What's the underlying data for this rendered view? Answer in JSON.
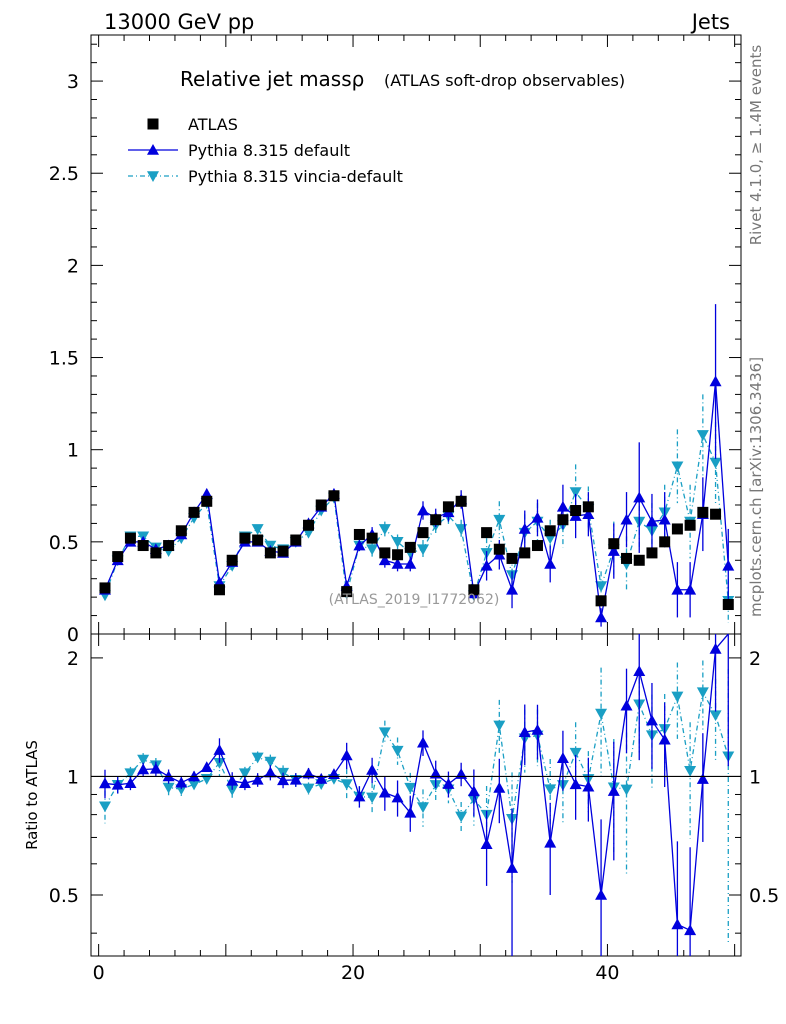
{
  "header": {
    "left": "13000 GeV pp",
    "right": "Jets"
  },
  "side_labels": {
    "top": "Rivet 4.1.0, ≥ 1.4M events",
    "bottom": "mcplots.cern.ch [arXiv:1306.3436]"
  },
  "watermark": "(ATLAS_2019_I1772062)",
  "chart_data": {
    "type": "scatter",
    "title": "Relative jet massρ",
    "subtitle": "(ATLAS soft-drop observables)",
    "xlabel": "",
    "ylabel": "",
    "ratio_ylabel": "Ratio to ATLAS",
    "xlim": [
      -0.6,
      50.5
    ],
    "ylim": [
      0,
      3.25
    ],
    "ratio_ylim": [
      0.35,
      2.3
    ],
    "x_ticks": [
      0,
      20,
      40
    ],
    "x_tick_labels": [
      "0",
      "20",
      "40"
    ],
    "y_ticks": [
      0,
      0.5,
      1,
      1.5,
      2,
      2.5,
      3
    ],
    "y_tick_labels": [
      "0",
      "0.5",
      "1",
      "1.5",
      "2",
      "2.5",
      "3"
    ],
    "ratio_ticks": [
      0.5,
      1,
      2
    ],
    "ratio_tick_labels": [
      "0.5",
      "1",
      "2"
    ],
    "legend": [
      "ATLAS",
      "Pythia 8.315 default",
      "Pythia 8.315 vincia-default"
    ],
    "colors": {
      "data": "#000000",
      "default": "#0000dd",
      "vincia": "#1a9fc4"
    },
    "x": [
      0.5,
      1.5,
      2.5,
      3.5,
      4.5,
      5.5,
      6.5,
      7.5,
      8.5,
      9.5,
      10.5,
      11.5,
      12.5,
      13.5,
      14.5,
      15.5,
      16.5,
      17.5,
      18.5,
      19.5,
      20.5,
      21.5,
      22.5,
      23.5,
      24.5,
      25.5,
      26.5,
      27.5,
      28.5,
      29.5,
      30.5,
      31.5,
      32.5,
      33.5,
      34.5,
      35.5,
      36.5,
      37.5,
      38.5,
      39.5,
      40.5,
      41.5,
      42.5,
      43.5,
      44.5,
      45.5,
      46.5,
      47.5,
      48.5,
      49.5
    ],
    "series": [
      {
        "name": "ATLAS",
        "marker": "square",
        "values": [
          0.25,
          0.42,
          0.52,
          0.48,
          0.44,
          0.48,
          0.56,
          0.66,
          0.72,
          0.24,
          0.4,
          0.52,
          0.51,
          0.44,
          0.45,
          0.51,
          0.59,
          0.7,
          0.75,
          0.23,
          0.54,
          0.52,
          0.44,
          0.43,
          0.47,
          0.55,
          0.62,
          0.69,
          0.72,
          0.24,
          0.55,
          0.46,
          0.41,
          0.44,
          0.48,
          0.56,
          0.62,
          0.67,
          0.69,
          0.18,
          0.49,
          0.41,
          0.4,
          0.44,
          0.5,
          0.57,
          0.59,
          0.66,
          0.65,
          0.16
        ]
      },
      {
        "name": "Pythia 8.315 default",
        "marker": "triangle-up",
        "values": [
          0.24,
          0.4,
          0.5,
          0.5,
          0.46,
          0.48,
          0.54,
          0.66,
          0.76,
          0.28,
          0.39,
          0.5,
          0.5,
          0.45,
          0.44,
          0.5,
          0.6,
          0.69,
          0.76,
          0.26,
          0.48,
          0.54,
          0.4,
          0.38,
          0.38,
          0.67,
          0.63,
          0.66,
          0.73,
          0.22,
          0.37,
          0.43,
          0.24,
          0.57,
          0.63,
          0.38,
          0.69,
          0.64,
          0.65,
          0.09,
          0.45,
          0.62,
          0.74,
          0.61,
          0.62,
          0.24,
          0.24,
          0.65,
          1.37,
          0.37
        ],
        "err": [
          0.02,
          0.02,
          0.02,
          0.02,
          0.02,
          0.02,
          0.02,
          0.02,
          0.02,
          0.02,
          0.02,
          0.02,
          0.02,
          0.02,
          0.02,
          0.02,
          0.02,
          0.02,
          0.02,
          0.02,
          0.03,
          0.04,
          0.04,
          0.04,
          0.04,
          0.05,
          0.05,
          0.05,
          0.05,
          0.03,
          0.08,
          0.08,
          0.1,
          0.1,
          0.1,
          0.1,
          0.12,
          0.12,
          0.12,
          0.05,
          0.15,
          0.15,
          0.3,
          0.15,
          0.15,
          0.15,
          0.15,
          0.2,
          0.42,
          0.2
        ]
      },
      {
        "name": "Pythia 8.315 vincia-default",
        "marker": "triangle-down",
        "values": [
          0.21,
          0.4,
          0.53,
          0.53,
          0.47,
          0.45,
          0.52,
          0.63,
          0.71,
          0.26,
          0.37,
          0.53,
          0.57,
          0.48,
          0.46,
          0.5,
          0.55,
          0.67,
          0.74,
          0.22,
          0.48,
          0.46,
          0.57,
          0.5,
          0.44,
          0.46,
          0.59,
          0.64,
          0.57,
          0.21,
          0.44,
          0.62,
          0.32,
          0.55,
          0.61,
          0.52,
          0.59,
          0.77,
          0.68,
          0.26,
          0.46,
          0.38,
          0.61,
          0.56,
          0.66,
          0.91,
          0.61,
          1.08,
          0.93,
          0.18
        ],
        "err": [
          0.02,
          0.02,
          0.02,
          0.02,
          0.02,
          0.02,
          0.02,
          0.02,
          0.02,
          0.02,
          0.02,
          0.02,
          0.02,
          0.02,
          0.02,
          0.02,
          0.02,
          0.02,
          0.02,
          0.02,
          0.03,
          0.04,
          0.04,
          0.04,
          0.04,
          0.05,
          0.05,
          0.05,
          0.05,
          0.03,
          0.08,
          0.1,
          0.1,
          0.1,
          0.1,
          0.1,
          0.12,
          0.15,
          0.12,
          0.08,
          0.15,
          0.15,
          0.15,
          0.15,
          0.15,
          0.2,
          0.2,
          0.22,
          0.22,
          0.12
        ]
      }
    ]
  }
}
